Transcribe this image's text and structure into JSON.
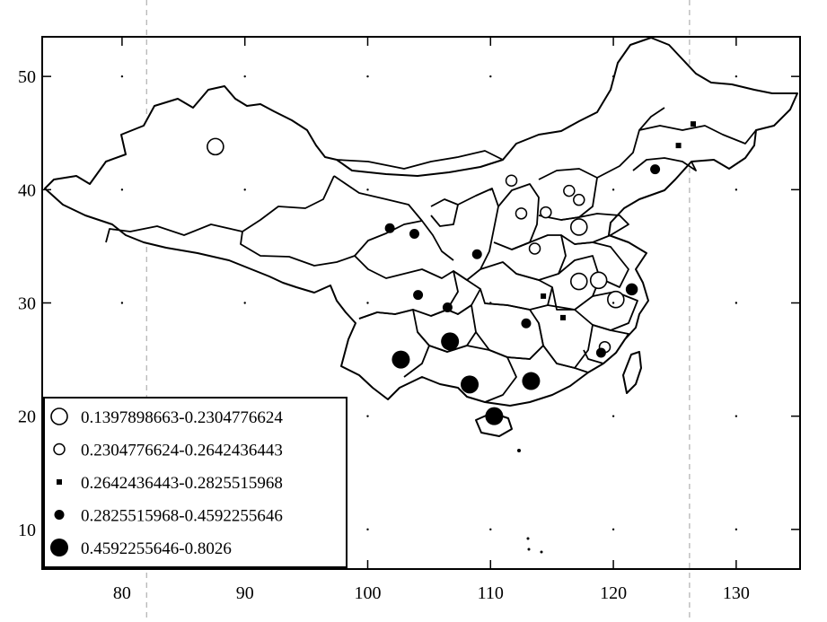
{
  "chart_data": {
    "type": "scatter",
    "title": "",
    "xlabel": "",
    "ylabel": "",
    "xlim": [
      73.5,
      135.2
    ],
    "ylim": [
      6.5,
      53.5
    ],
    "x_ticks": [
      80,
      90,
      100,
      110,
      120,
      130
    ],
    "y_ticks": [
      10,
      20,
      30,
      40,
      50
    ],
    "x_tick_labels": [
      "80",
      "90",
      "100",
      "110",
      "120",
      "130"
    ],
    "y_tick_labels": [
      "10",
      "20",
      "30",
      "40",
      "50"
    ],
    "reference_lines_x": [
      82,
      126.2
    ],
    "basemap": "China provincial boundaries",
    "legend_position": "bottom-left",
    "legend": [
      {
        "label": "0.1397898663-0.2304776624",
        "marker": "open-circle-large"
      },
      {
        "label": "0.2304776624-0.2642436443",
        "marker": "open-circle-small"
      },
      {
        "label": "0.2642436443-0.2825515968",
        "marker": "filled-square"
      },
      {
        "label": "0.2825515968-0.4592255646",
        "marker": "filled-circle-medium"
      },
      {
        "label": "0.4592255646-0.8026",
        "marker": "filled-circle-large"
      }
    ],
    "series": [
      {
        "class": 0,
        "points": [
          [
            87.6,
            43.8
          ],
          [
            117.2,
            36.7
          ],
          [
            117.2,
            31.9
          ],
          [
            118.8,
            32.0
          ],
          [
            120.2,
            30.3
          ]
        ]
      },
      {
        "class": 1,
        "points": [
          [
            111.7,
            40.8
          ],
          [
            112.5,
            37.9
          ],
          [
            114.5,
            38.0
          ],
          [
            113.6,
            34.8
          ],
          [
            116.4,
            39.9
          ],
          [
            117.2,
            39.1
          ],
          [
            121.5,
            31.2
          ],
          [
            119.3,
            26.1
          ]
        ]
      },
      {
        "class": 2,
        "points": [
          [
            126.5,
            45.8
          ],
          [
            125.3,
            43.9
          ],
          [
            114.3,
            30.6
          ],
          [
            115.9,
            28.7
          ]
        ]
      },
      {
        "class": 3,
        "points": [
          [
            123.4,
            41.8
          ],
          [
            101.8,
            36.6
          ],
          [
            103.8,
            36.1
          ],
          [
            108.9,
            34.3
          ],
          [
            104.1,
            30.7
          ],
          [
            106.5,
            29.6
          ],
          [
            112.9,
            28.2
          ],
          [
            119.0,
            25.6
          ],
          [
            121.5,
            31.2
          ]
        ]
      },
      {
        "class": 4,
        "points": [
          [
            102.7,
            25.0
          ],
          [
            106.7,
            26.6
          ],
          [
            108.3,
            22.8
          ],
          [
            113.3,
            23.1
          ],
          [
            110.3,
            20.0
          ]
        ]
      }
    ]
  }
}
